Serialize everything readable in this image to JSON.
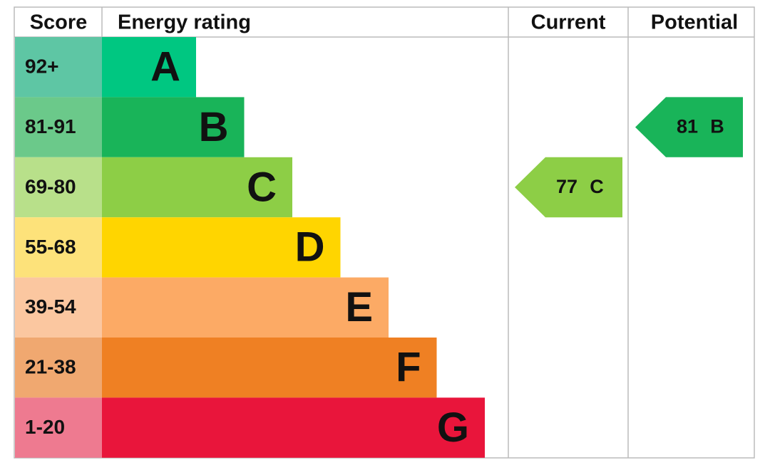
{
  "headers": {
    "score": "Score",
    "rating": "Energy rating",
    "current": "Current",
    "potential": "Potential"
  },
  "bands": [
    {
      "score": "92+",
      "letter": "A",
      "color": "#00c781",
      "score_color": "#5ec6a4"
    },
    {
      "score": "81-91",
      "letter": "B",
      "color": "#19b459",
      "score_color": "#6bc98a"
    },
    {
      "score": "69-80",
      "letter": "C",
      "color": "#8dce46",
      "score_color": "#b8e08a"
    },
    {
      "score": "55-68",
      "letter": "D",
      "color": "#ffd500",
      "score_color": "#fde27a"
    },
    {
      "score": "39-54",
      "letter": "E",
      "color": "#fcaa65",
      "score_color": "#fbc7a0"
    },
    {
      "score": "21-38",
      "letter": "F",
      "color": "#ef8023",
      "score_color": "#f0a870"
    },
    {
      "score": "1-20",
      "letter": "G",
      "color": "#e9153b",
      "score_color": "#ee7a90"
    }
  ],
  "current": {
    "value": 77,
    "letter": "C"
  },
  "potential": {
    "value": 81,
    "letter": "B"
  }
}
